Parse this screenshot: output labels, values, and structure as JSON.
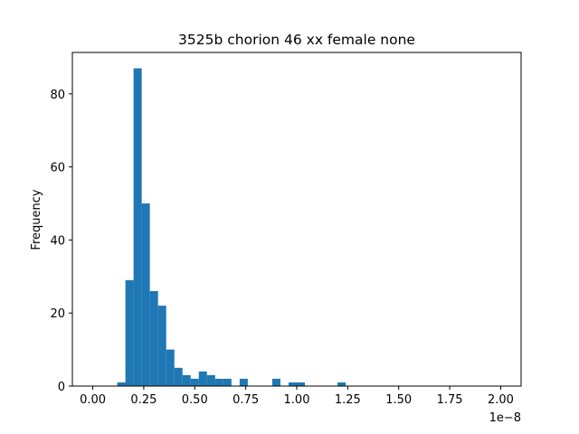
{
  "chart_data": {
    "type": "bar",
    "title": "3525b chorion 46 xx female none",
    "xlabel": "",
    "ylabel": "Frequency",
    "x_offset_label": "1e−8",
    "x_scale": 1e-08,
    "xlim": [
      -0.1,
      2.1
    ],
    "ylim": [
      0,
      91.35
    ],
    "xticks": [
      0.0,
      0.25,
      0.5,
      0.75,
      1.0,
      1.25,
      1.5,
      1.75,
      2.0
    ],
    "xtick_labels": [
      "0.00",
      "0.25",
      "0.50",
      "0.75",
      "1.00",
      "1.25",
      "1.50",
      "1.75",
      "2.00"
    ],
    "yticks": [
      0,
      20,
      40,
      60,
      80
    ],
    "ytick_labels": [
      "0",
      "20",
      "40",
      "60",
      "80"
    ],
    "bin_width": 0.04,
    "bin_starts": [
      0.12,
      0.16,
      0.2,
      0.24,
      0.28,
      0.32,
      0.36,
      0.4,
      0.44,
      0.48,
      0.52,
      0.56,
      0.6,
      0.64,
      0.72,
      0.88,
      0.96,
      1.0,
      1.2
    ],
    "values": [
      1,
      29,
      87,
      50,
      26,
      22,
      10,
      5,
      3,
      2,
      4,
      3,
      2,
      2,
      2,
      2,
      1,
      1,
      1
    ],
    "bar_color": "#1f77b4",
    "grid": false
  }
}
